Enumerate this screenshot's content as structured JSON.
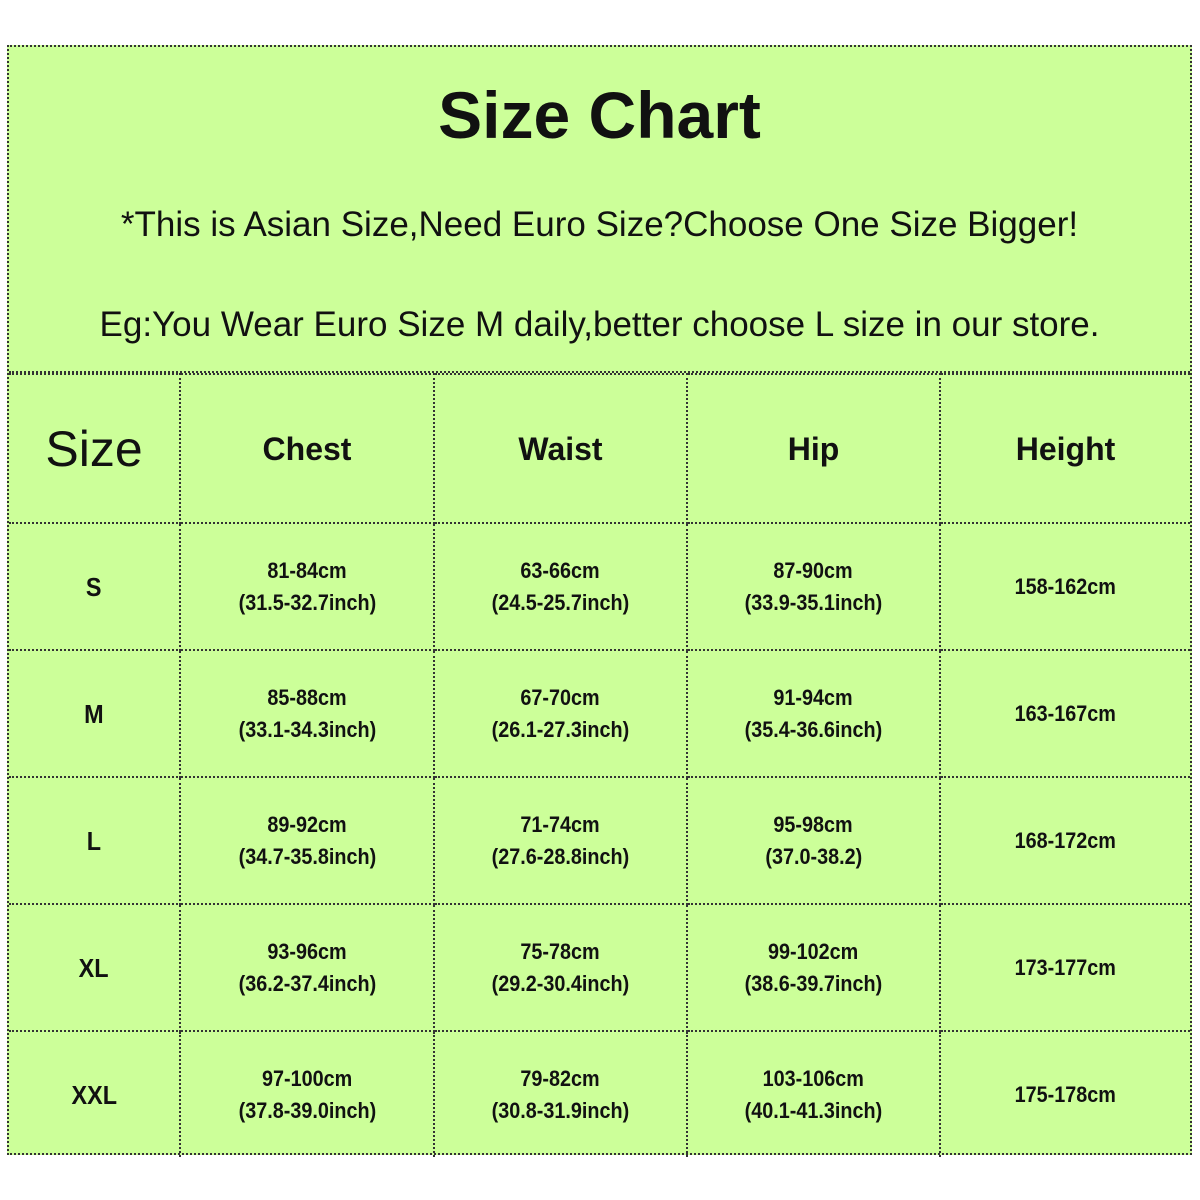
{
  "title": "Size Chart",
  "note1": "*This is Asian Size,Need Euro Size?Choose One Size Bigger!",
  "note2": "Eg:You Wear Euro Size M daily,better choose L size in our store.",
  "background_color": "#ccff99",
  "headers": [
    "Size",
    "Chest",
    "Waist",
    "Hip",
    "Height"
  ],
  "rows": [
    {
      "size": "S",
      "chest": [
        "81-84cm",
        "(31.5-32.7inch)"
      ],
      "waist": [
        "63-66cm",
        "(24.5-25.7inch)"
      ],
      "hip": [
        "87-90cm",
        "(33.9-35.1inch)"
      ],
      "height": "158-162cm"
    },
    {
      "size": "M",
      "chest": [
        "85-88cm",
        "(33.1-34.3inch)"
      ],
      "waist": [
        "67-70cm",
        "(26.1-27.3inch)"
      ],
      "hip": [
        "91-94cm",
        "(35.4-36.6inch)"
      ],
      "height": "163-167cm"
    },
    {
      "size": "L",
      "chest": [
        "89-92cm",
        "(34.7-35.8inch)"
      ],
      "waist": [
        "71-74cm",
        "(27.6-28.8inch)"
      ],
      "hip": [
        "95-98cm",
        "(37.0-38.2)"
      ],
      "height": "168-172cm"
    },
    {
      "size": "XL",
      "chest": [
        "93-96cm",
        "(36.2-37.4inch)"
      ],
      "waist": [
        "75-78cm",
        "(29.2-30.4inch)"
      ],
      "hip": [
        "99-102cm",
        "(38.6-39.7inch)"
      ],
      "height": "173-177cm"
    },
    {
      "size": "XXL",
      "chest": [
        "97-100cm",
        "(37.8-39.0inch)"
      ],
      "waist": [
        "79-82cm",
        "(30.8-31.9inch)"
      ],
      "hip": [
        "103-106cm",
        "(40.1-41.3inch)"
      ],
      "height": "175-178cm"
    }
  ]
}
